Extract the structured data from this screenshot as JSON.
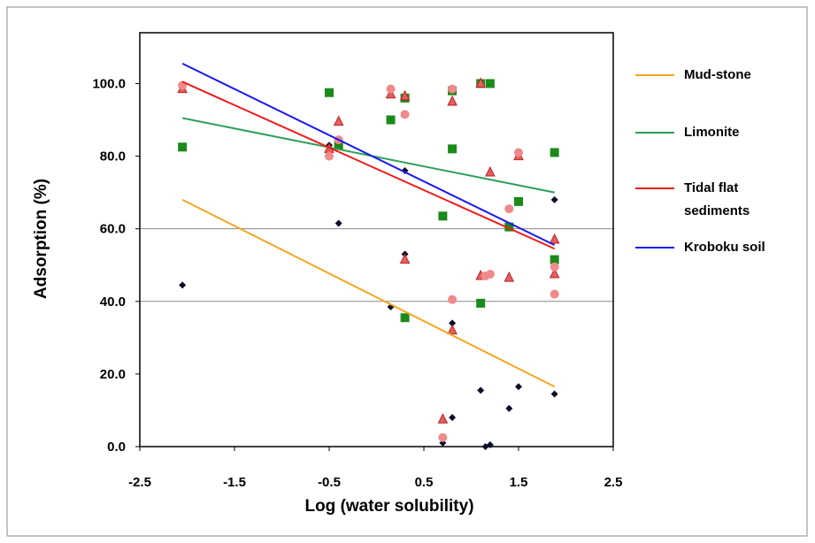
{
  "chart_data": {
    "type": "scatter",
    "x_label": "Log (water solubility)",
    "y_label": "Adsorption (%)",
    "xlim": [
      -2.5,
      2.5
    ],
    "xticks": [
      -2.5,
      -1.5,
      -0.5,
      0.5,
      1.5,
      2.5
    ],
    "ylim": [
      0,
      114
    ],
    "yticks": [
      {
        "value": 0,
        "label": "0.0"
      },
      {
        "value": 20,
        "label": "20.0"
      },
      {
        "value": 40,
        "label": "40.0"
      },
      {
        "value": 60,
        "label": "60.0"
      },
      {
        "value": 80,
        "label": "80.0"
      },
      {
        "value": 100,
        "label": "100.0"
      }
    ],
    "grid_lines": [
      40,
      60
    ],
    "series": [
      {
        "name": "Mud-stone",
        "color": "#f5a623",
        "marker": "diamond",
        "marker_color": "#0a0a2a",
        "x": [
          -2.05,
          -0.5,
          -0.4,
          0.15,
          0.3,
          0.3,
          0.7,
          0.8,
          0.8,
          1.1,
          1.15,
          1.2,
          1.4,
          1.5,
          1.88,
          1.88
        ],
        "values": [
          44.5,
          83,
          61.5,
          38.5,
          53,
          76,
          1,
          8,
          34,
          15.5,
          0,
          0.5,
          10.5,
          16.5,
          14.5,
          68
        ],
        "trend": {
          "x": [
            -2.05,
            1.88
          ],
          "values": [
            68,
            16.5
          ]
        }
      },
      {
        "name": "Limonite",
        "color": "#2e9e5a",
        "marker": "square",
        "marker_color": "#1a8a1a",
        "x": [
          -2.05,
          -0.5,
          -0.4,
          0.15,
          0.3,
          0.3,
          0.7,
          0.8,
          0.8,
          1.1,
          1.1,
          1.2,
          1.4,
          1.5,
          1.88,
          1.88
        ],
        "values": [
          82.5,
          97.5,
          83,
          90,
          96,
          35.5,
          63.5,
          98,
          82,
          39.5,
          100,
          100,
          60.5,
          67.5,
          81,
          51.5
        ],
        "trend": {
          "x": [
            -2.05,
            1.88
          ],
          "values": [
            90.5,
            70
          ]
        }
      },
      {
        "name": "Tidal flat sediments",
        "color": "#ee1c1c",
        "marker": "triangle",
        "marker_color": "#e06060",
        "x": [
          -2.05,
          -0.5,
          -0.4,
          0.15,
          0.3,
          0.3,
          0.7,
          0.8,
          0.8,
          1.1,
          1.1,
          1.2,
          1.4,
          1.5,
          1.88,
          1.88
        ],
        "values": [
          98.5,
          82,
          89.5,
          97,
          96.5,
          51.5,
          7.5,
          95,
          32,
          47,
          100,
          75.5,
          46.5,
          80,
          57,
          47.5
        ],
        "trend": {
          "x": [
            -2.05,
            1.88
          ],
          "values": [
            100.5,
            54.5
          ]
        }
      },
      {
        "name": "Kroboku soil",
        "color": "#1a1aee",
        "marker": "circle",
        "marker_color": "#f08a8a",
        "x": [
          -2.05,
          -0.5,
          -0.4,
          0.15,
          0.3,
          0.7,
          0.8,
          0.8,
          1.15,
          1.2,
          1.4,
          1.5,
          1.88,
          1.88
        ],
        "values": [
          99.5,
          80,
          84.5,
          98.5,
          91.5,
          2.5,
          98.5,
          40.5,
          47,
          47.5,
          65.5,
          81,
          49.5,
          42
        ],
        "trend": {
          "x": [
            -2.05,
            1.88
          ],
          "values": [
            105.5,
            55.5
          ]
        }
      }
    ]
  }
}
